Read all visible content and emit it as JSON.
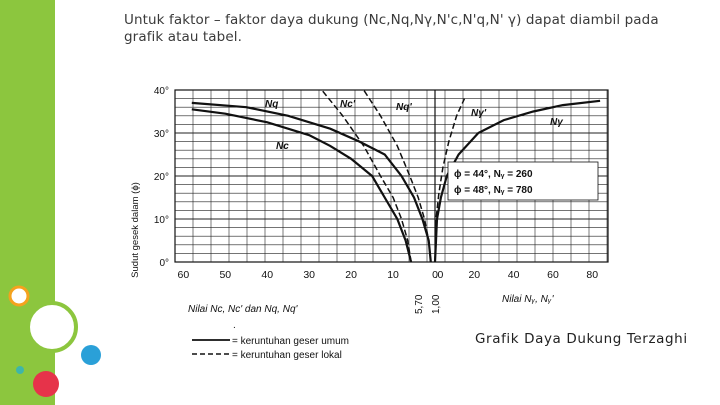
{
  "slide": {
    "heading_line1": "Untuk faktor – faktor daya dukung (Nc,Nq,Nγ,N'c,N'q,N' γ) dapat diambil pada",
    "heading_line2": "grafik atau tabel.",
    "caption": "Grafik Daya Dukung Terzaghi"
  },
  "colors": {
    "accent_green": "#8cc63e",
    "circle_green": "#8cc63e",
    "circle_blue": "#2aa0d8",
    "circle_red": "#e6334a",
    "circle_orange": "#f4a21e"
  },
  "chart_data": {
    "type": "line",
    "ylabel": "Sudut gesek dalam (ϕ)",
    "y_ticks": [
      "0°",
      "10°",
      "20°",
      "30°",
      "40°"
    ],
    "x_left_ticks": [
      "60",
      "50",
      "40",
      "30",
      "20",
      "10",
      "0"
    ],
    "x_right_ticks": [
      ".0",
      "20",
      "40",
      "60",
      "80"
    ],
    "x_left_label": "Nilai Nc, Nc' dan Nq, Nq'",
    "x_right_label": "Nilai Nᵧ, Nᵧ'",
    "vertical_labels": [
      "5,70",
      "1,00"
    ],
    "annotations": [
      "ϕ = 44°, Nᵧ = 260",
      "ϕ = 48°, Nᵧ = 780"
    ],
    "legend": [
      "= keruntuhan geser umum",
      "= keruntuhan geser lokal"
    ],
    "legend_bullet": ".",
    "curve_labels": {
      "Nq": "Nq",
      "Nc": "Nc",
      "Nc_local": "Nc'",
      "Nq_local": "Nq'",
      "Ng": "Nγ",
      "Ng_local": "Nγ'"
    },
    "series": [
      {
        "name": "Nc",
        "style": "solid",
        "x": [
          5.7,
          7,
          9,
          12,
          15,
          20,
          25,
          30,
          40,
          50,
          58
        ],
        "y": [
          0,
          5,
          10,
          15,
          20,
          24,
          27,
          29.5,
          32.5,
          34.5,
          35.5
        ]
      },
      {
        "name": "Nq",
        "style": "solid",
        "x": [
          1,
          1.5,
          3,
          5,
          8,
          12,
          18,
          25,
          35,
          45,
          58
        ],
        "y": [
          0,
          5,
          10,
          15,
          20,
          25,
          28,
          31,
          34,
          36,
          37
        ]
      },
      {
        "name": "Nc'",
        "style": "dashed",
        "x": [
          5.7,
          6.5,
          8,
          10,
          13,
          17,
          22,
          27
        ],
        "y": [
          0,
          5,
          10,
          15,
          20,
          27,
          34,
          40
        ]
      },
      {
        "name": "Nq'",
        "style": "dashed",
        "x": [
          1,
          1.5,
          2.5,
          4,
          6,
          9,
          13,
          17
        ],
        "y": [
          0,
          5,
          10,
          15,
          20,
          27,
          34,
          40
        ]
      },
      {
        "name": "Nγ",
        "style": "solid",
        "x": [
          0,
          1,
          3,
          6,
          12,
          22,
          35,
          50,
          65,
          84
        ],
        "y": [
          0,
          10,
          15,
          20,
          25,
          30,
          33,
          35,
          36.5,
          37.5
        ]
      },
      {
        "name": "Nγ'",
        "style": "dashed",
        "x": [
          0,
          0.5,
          2,
          4,
          7,
          11,
          15
        ],
        "y": [
          0,
          10,
          16,
          22,
          28,
          34,
          38
        ]
      }
    ]
  }
}
